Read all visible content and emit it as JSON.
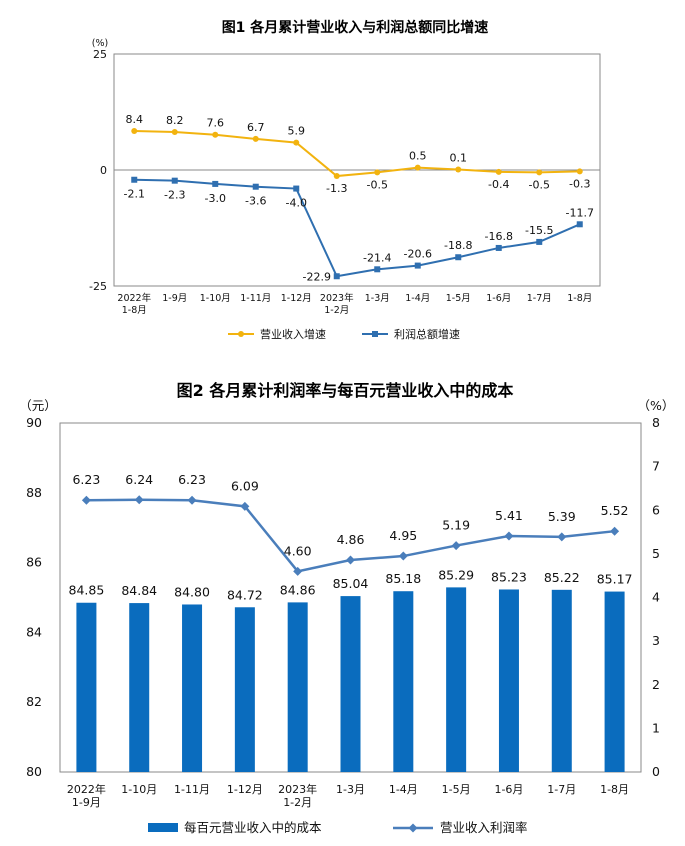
{
  "chart_data": [
    {
      "type": "line",
      "title": "图1  各月累计营业收入与利润总额同比增速",
      "unit": "(%)",
      "ylim": [
        -25,
        25
      ],
      "yticks": [
        "25",
        "0",
        "-25"
      ],
      "categories": [
        [
          "2022年",
          "1-8月"
        ],
        [
          "1-9月"
        ],
        [
          "1-10月"
        ],
        [
          "1-11月"
        ],
        [
          "1-12月"
        ],
        [
          "2023年",
          "1-2月"
        ],
        [
          "1-3月"
        ],
        [
          "1-4月"
        ],
        [
          "1-5月"
        ],
        [
          "1-6月"
        ],
        [
          "1-7月"
        ],
        [
          "1-8月"
        ]
      ],
      "series": [
        {
          "name": "营业收入增速",
          "color": "#F2B30F",
          "values": [
            8.4,
            8.2,
            7.6,
            6.7,
            5.9,
            -1.3,
            -0.5,
            0.5,
            0.1,
            -0.4,
            -0.5,
            -0.3
          ],
          "labels": [
            "8.4",
            "8.2",
            "7.6",
            "6.7",
            "5.9",
            "-1.3",
            "-0.5",
            "0.5",
            "0.1",
            "-0.4",
            "-0.5",
            "-0.3"
          ]
        },
        {
          "name": "利润总额增速",
          "color": "#2F6FB0",
          "values": [
            -2.1,
            -2.3,
            -3.0,
            -3.6,
            -4.0,
            -22.9,
            -21.4,
            -20.6,
            -18.8,
            -16.8,
            -15.5,
            -11.7
          ],
          "labels": [
            "-2.1",
            "-2.3",
            "-3.0",
            "-3.6",
            "-4.0",
            "-22.9",
            "-21.4",
            "-20.6",
            "-18.8",
            "-16.8",
            "-15.5",
            "-11.7"
          ]
        }
      ],
      "grid": false,
      "legend": "bottom"
    },
    {
      "type": "bar",
      "title": "图2  各月累计利润率与每百元营业收入中的成本",
      "left_unit": "（元）",
      "right_unit": "（%）",
      "ylim_left": [
        80,
        90
      ],
      "ylim_right": [
        0,
        8
      ],
      "yticks_left": [
        "80",
        "82",
        "84",
        "86",
        "88",
        "90"
      ],
      "yticks_right": [
        "0",
        "1",
        "2",
        "3",
        "4",
        "5",
        "6",
        "7",
        "8"
      ],
      "categories": [
        [
          "2022年",
          "1-9月"
        ],
        [
          "1-10月"
        ],
        [
          "1-11月"
        ],
        [
          "1-12月"
        ],
        [
          "2023年",
          "1-2月"
        ],
        [
          "1-3月"
        ],
        [
          "1-4月"
        ],
        [
          "1-5月"
        ],
        [
          "1-6月"
        ],
        [
          "1-7月"
        ],
        [
          "1-8月"
        ]
      ],
      "series": [
        {
          "name": "每百元营业收入中的成本",
          "kind": "bar",
          "axis": "left",
          "color": "#0A6CBE",
          "values": [
            84.85,
            84.84,
            84.8,
            84.72,
            84.86,
            85.04,
            85.18,
            85.29,
            85.23,
            85.22,
            85.17
          ],
          "labels": [
            "84.85",
            "84.84",
            "84.80",
            "84.72",
            "84.86",
            "85.04",
            "85.18",
            "85.29",
            "85.23",
            "85.22",
            "85.17"
          ]
        },
        {
          "name": "营业收入利润率",
          "kind": "line",
          "axis": "right",
          "color": "#4A7EBB",
          "values": [
            6.23,
            6.24,
            6.23,
            6.09,
            4.6,
            4.86,
            4.95,
            5.19,
            5.41,
            5.39,
            5.52
          ],
          "labels": [
            "6.23",
            "6.24",
            "6.23",
            "6.09",
            "4.60",
            "4.86",
            "4.95",
            "5.19",
            "5.41",
            "5.39",
            "5.52"
          ]
        }
      ],
      "grid": false,
      "legend": "bottom"
    }
  ]
}
